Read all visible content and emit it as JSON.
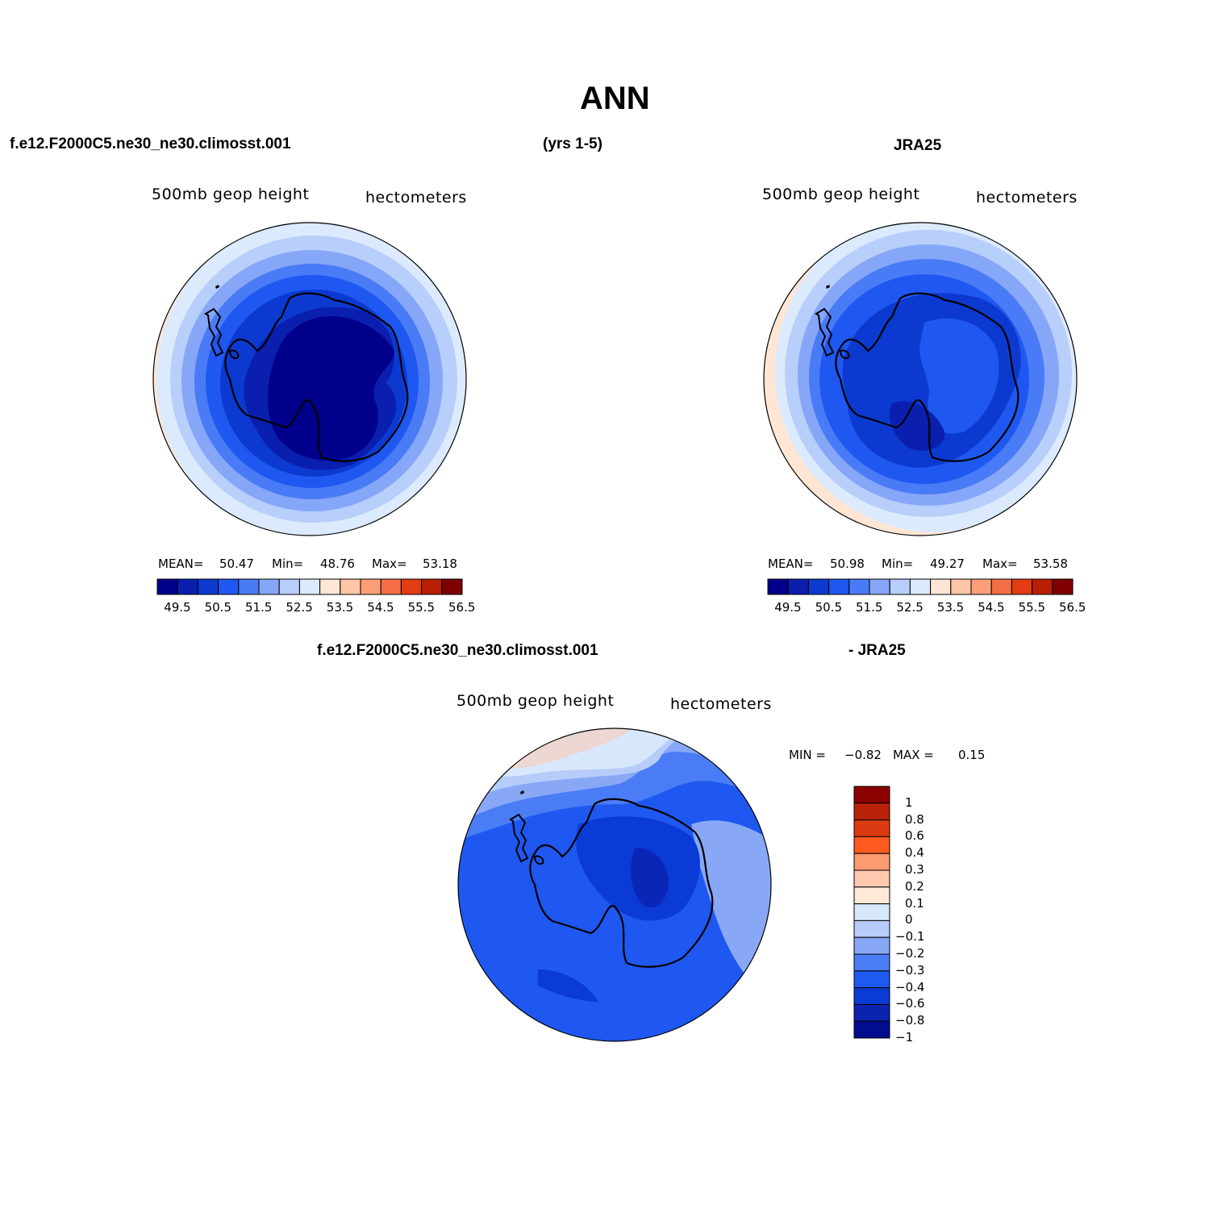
{
  "title": "ANN",
  "top_left_header": "f.e12.F2000C5.ne30_ne30.climosst.001",
  "top_mid_header": "(yrs 1-5)",
  "top_right_header": "JRA25",
  "bottom_header_left": "f.e12.F2000C5.ne30_ne30.climosst.001",
  "bottom_header_right": "- JRA25",
  "panel_left": {
    "variable": "500mb geop height",
    "units": "hectometers",
    "mean_label": "MEAN=",
    "mean": "50.47",
    "min_label": "Min=",
    "min": "48.76",
    "max_label": "Max=",
    "max": "53.18"
  },
  "panel_right": {
    "variable": "500mb geop height",
    "units": "hectometers",
    "mean_label": "MEAN=",
    "mean": "50.98",
    "min_label": "Min=",
    "min": "49.27",
    "max_label": "Max=",
    "max": "53.58"
  },
  "panel_diff": {
    "variable": "500mb geop height",
    "units": "hectometers",
    "min_label": "MIN =",
    "min": "−0.82",
    "max_label": "MAX =",
    "max": "0.15"
  },
  "colorbar_main": {
    "colors": [
      "#00008b",
      "#0a1fae",
      "#0c3ad0",
      "#1e58f0",
      "#4a7bf6",
      "#86a6f8",
      "#b8cefb",
      "#dceafd",
      "#ffe6d4",
      "#fec5a6",
      "#fc9f78",
      "#f56d44",
      "#e33c14",
      "#b81f04",
      "#7f0000"
    ],
    "tick_labels": [
      "49.5",
      "50.5",
      "51.5",
      "52.5",
      "53.5",
      "54.5",
      "55.5",
      "56.5"
    ]
  },
  "colorbar_diff": {
    "colors": [
      "#8b0000",
      "#b8230a",
      "#dc3a10",
      "#ff5a20",
      "#fc9a70",
      "#fec8ae",
      "#ffe8d6",
      "#d8e8fc",
      "#b8ccfa",
      "#88a8f6",
      "#4a7cf5",
      "#1e5af0",
      "#0a3bd4",
      "#0a22ad",
      "#000d8f"
    ],
    "tick_labels": [
      "1",
      "0.8",
      "0.6",
      "0.4",
      "0.3",
      "0.2",
      "0.1",
      "0",
      "−0.1",
      "−0.2",
      "−0.3",
      "−0.4",
      "−0.6",
      "−0.8",
      "−1"
    ]
  }
}
